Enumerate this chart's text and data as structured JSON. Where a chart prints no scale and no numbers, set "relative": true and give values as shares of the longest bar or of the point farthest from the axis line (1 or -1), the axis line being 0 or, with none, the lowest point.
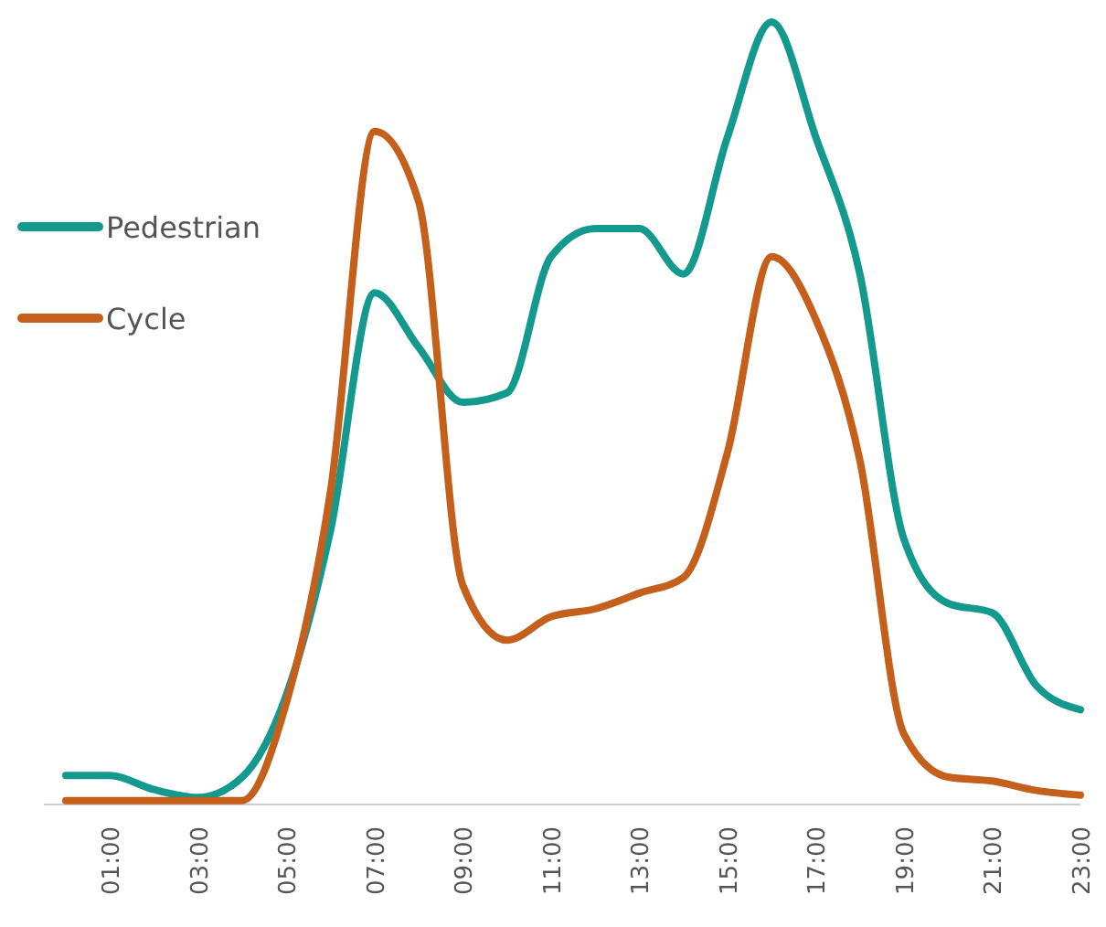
{
  "chart_data": {
    "type": "line",
    "relative": true,
    "legend": "left",
    "marker": "none",
    "line_style": "solid",
    "categories": [
      null,
      "01:00",
      null,
      "03:00",
      null,
      "05:00",
      null,
      "07:00",
      null,
      "09:00",
      null,
      "11:00",
      null,
      "13:00",
      null,
      "15:00",
      null,
      "17:00",
      null,
      "19:00",
      null,
      "21:00",
      null,
      "23:00"
    ],
    "series": [
      {
        "name": "Pedestrian",
        "color": "#14998f",
        "values": [
          0.037,
          0.037,
          0.019,
          0.009,
          0.035,
          0.14,
          0.35,
          0.654,
          0.584,
          0.514,
          0.526,
          0.7,
          0.736,
          0.736,
          0.678,
          0.853,
          1,
          0.853,
          0.678,
          0.339,
          0.257,
          0.245,
          0.152,
          0.121
        ]
      },
      {
        "name": "Cycle",
        "color": "#c4601c",
        "values": [
          0.005,
          0.005,
          0.005,
          0.005,
          0.005,
          0.13,
          0.4,
          0.86,
          0.77,
          0.28,
          0.21,
          0.24,
          0.25,
          0.27,
          0.29,
          0.45,
          0.7,
          0.62,
          0.44,
          0.09,
          0.035,
          0.03,
          0.018,
          0.012
        ]
      }
    ]
  }
}
